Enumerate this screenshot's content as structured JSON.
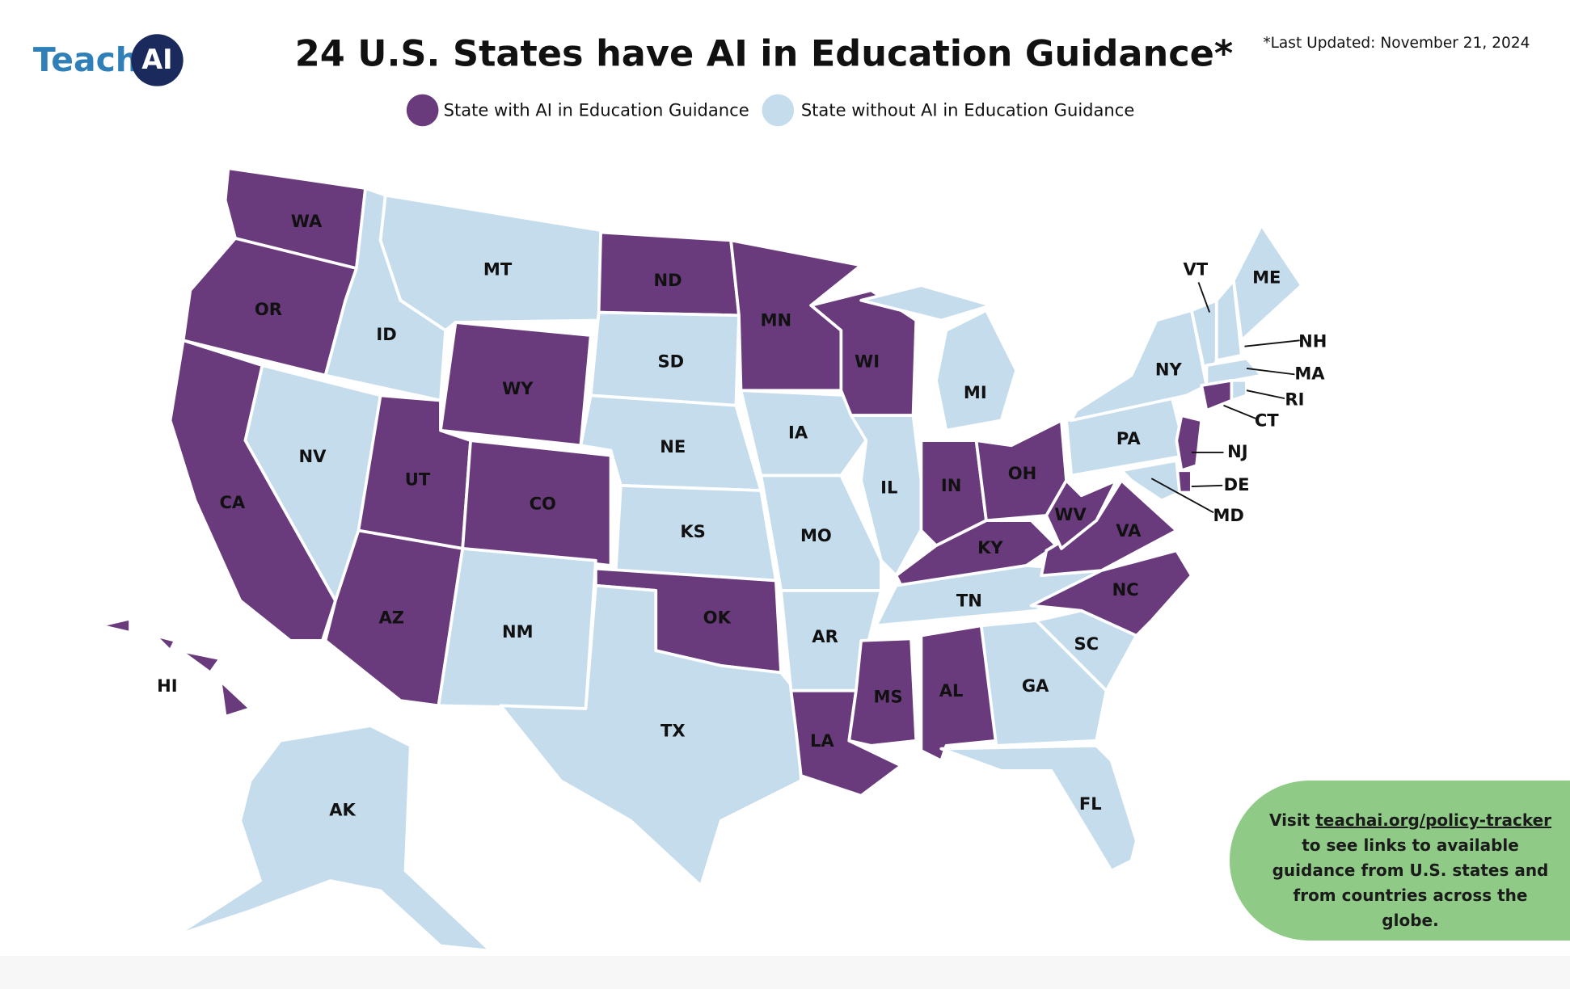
{
  "logo": {
    "text": "Teach",
    "badge": "AI"
  },
  "title": "24 U.S. States have AI in Education Guidance*",
  "last_updated": "*Last Updated: November 21, 2024",
  "legend": [
    {
      "label": "State with AI in Education Guidance",
      "color": "#6a3b7c"
    },
    {
      "label": "State without AI in Education Guidance",
      "color": "#c5dced"
    }
  ],
  "states": [
    {
      "label": "WA",
      "guidance": true
    },
    {
      "label": "OR",
      "guidance": true
    },
    {
      "label": "CA",
      "guidance": true
    },
    {
      "label": "ID",
      "guidance": false
    },
    {
      "label": "NV",
      "guidance": false
    },
    {
      "label": "MT",
      "guidance": false
    },
    {
      "label": "WY",
      "guidance": true
    },
    {
      "label": "UT",
      "guidance": true
    },
    {
      "label": "CO",
      "guidance": true
    },
    {
      "label": "AZ",
      "guidance": true
    },
    {
      "label": "NM",
      "guidance": false
    },
    {
      "label": "ND",
      "guidance": true
    },
    {
      "label": "SD",
      "guidance": false
    },
    {
      "label": "NE",
      "guidance": false
    },
    {
      "label": "KS",
      "guidance": false
    },
    {
      "label": "OK",
      "guidance": true
    },
    {
      "label": "TX",
      "guidance": false
    },
    {
      "label": "MN",
      "guidance": true
    },
    {
      "label": "IA",
      "guidance": false
    },
    {
      "label": "MO",
      "guidance": false
    },
    {
      "label": "AR",
      "guidance": false
    },
    {
      "label": "LA",
      "guidance": true
    },
    {
      "label": "WI",
      "guidance": true
    },
    {
      "label": "IL",
      "guidance": false
    },
    {
      "label": "MI",
      "guidance": false
    },
    {
      "label": "IN",
      "guidance": true
    },
    {
      "label": "OH",
      "guidance": true
    },
    {
      "label": "KY",
      "guidance": true
    },
    {
      "label": "TN",
      "guidance": false
    },
    {
      "label": "MS",
      "guidance": true
    },
    {
      "label": "AL",
      "guidance": true
    },
    {
      "label": "GA",
      "guidance": false
    },
    {
      "label": "FL",
      "guidance": false
    },
    {
      "label": "SC",
      "guidance": false
    },
    {
      "label": "NC",
      "guidance": true
    },
    {
      "label": "VA",
      "guidance": true
    },
    {
      "label": "WV",
      "guidance": true
    },
    {
      "label": "PA",
      "guidance": false
    },
    {
      "label": "NY",
      "guidance": false
    },
    {
      "label": "VT",
      "guidance": false
    },
    {
      "label": "NH",
      "guidance": false
    },
    {
      "label": "ME",
      "guidance": false
    },
    {
      "label": "MA",
      "guidance": false
    },
    {
      "label": "CT",
      "guidance": true
    },
    {
      "label": "RI",
      "guidance": false
    },
    {
      "label": "NJ",
      "guidance": true
    },
    {
      "label": "DE",
      "guidance": true
    },
    {
      "label": "MD",
      "guidance": false
    },
    {
      "label": "AK",
      "guidance": false
    },
    {
      "label": "HI",
      "guidance": true
    }
  ],
  "callout": {
    "before": "Visit",
    "link": "teachai.org/policy-tracker",
    "after": "to see links to available guidance from U.S. states and from countries across the globe."
  }
}
